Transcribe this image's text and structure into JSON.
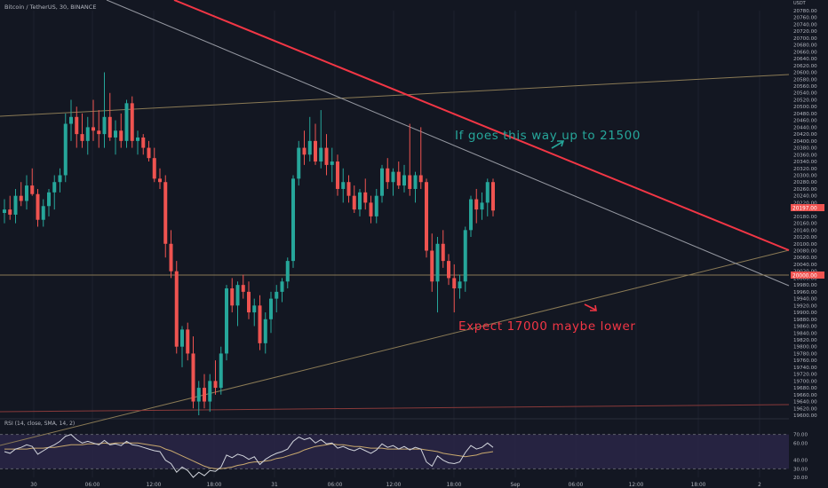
{
  "header": {
    "symbol_line": "Bitcoin / TetherUS, 30, BINANCE",
    "currency": "USDT"
  },
  "annotations": {
    "up_text": "If goes this way up to 21500",
    "down_text": "Expect 17000 maybe lower"
  },
  "colors": {
    "background": "#131722",
    "up_candle": "#26a69a",
    "down_candle": "#ef5350",
    "red_trendline": "#f23645",
    "up_annotation": "#26a69a",
    "down_annotation": "#f23645",
    "rsi_line": "#d1d4dc",
    "rsi_ma": "#c9a96e",
    "rsi_band": "#2a2646"
  },
  "price_badges": {
    "current": "20197.00",
    "hline": "20000.00"
  },
  "chart_data": [
    {
      "type": "candlestick",
      "title": "Bitcoin / TetherUS, 30, BINANCE",
      "ylim": [
        19600,
        20780
      ],
      "y_tick_labels": [
        "20780.00",
        "20760.00",
        "20740.00",
        "20720.00",
        "20700.00",
        "20680.00",
        "20660.00",
        "20640.00",
        "20620.00",
        "20600.00",
        "20580.00",
        "20560.00",
        "20540.00",
        "20520.00",
        "20500.00",
        "20480.00",
        "20460.00",
        "20440.00",
        "20420.00",
        "20400.00",
        "20380.00",
        "20360.00",
        "20340.00",
        "20320.00",
        "20300.00",
        "20280.00",
        "20260.00",
        "20240.00",
        "20220.00",
        "20200.00",
        "20180.00",
        "20160.00",
        "20140.00",
        "20120.00",
        "20100.00",
        "20080.00",
        "20060.00",
        "20040.00",
        "20020.00",
        "20000.00",
        "19980.00",
        "19960.00",
        "19940.00",
        "19920.00",
        "19900.00",
        "19880.00",
        "19860.00",
        "19840.00",
        "19820.00",
        "19800.00",
        "19780.00",
        "19760.00",
        "19740.00",
        "19720.00",
        "19700.00",
        "19680.00",
        "19660.00",
        "19640.00",
        "19620.00",
        "19600.00"
      ],
      "x_tick_labels": [
        "30",
        "06:00",
        "12:00",
        "18:00",
        "31",
        "06:00",
        "12:00",
        "18:00",
        "Sep",
        "06:00",
        "12:00",
        "18:00",
        "2"
      ],
      "candles": [
        {
          "o": 20190,
          "h": 20230,
          "l": 20160,
          "c": 20200
        },
        {
          "o": 20200,
          "h": 20240,
          "l": 20170,
          "c": 20185
        },
        {
          "o": 20185,
          "h": 20260,
          "l": 20160,
          "c": 20240
        },
        {
          "o": 20240,
          "h": 20280,
          "l": 20210,
          "c": 20225
        },
        {
          "o": 20225,
          "h": 20300,
          "l": 20200,
          "c": 20270
        },
        {
          "o": 20270,
          "h": 20320,
          "l": 20240,
          "c": 20245
        },
        {
          "o": 20245,
          "h": 20260,
          "l": 20150,
          "c": 20170
        },
        {
          "o": 20170,
          "h": 20230,
          "l": 20150,
          "c": 20210
        },
        {
          "o": 20210,
          "h": 20260,
          "l": 20180,
          "c": 20250
        },
        {
          "o": 20250,
          "h": 20300,
          "l": 20200,
          "c": 20280
        },
        {
          "o": 20280,
          "h": 20320,
          "l": 20250,
          "c": 20300
        },
        {
          "o": 20300,
          "h": 20480,
          "l": 20280,
          "c": 20450
        },
        {
          "o": 20450,
          "h": 20520,
          "l": 20400,
          "c": 20470
        },
        {
          "o": 20470,
          "h": 20500,
          "l": 20380,
          "c": 20420
        },
        {
          "o": 20420,
          "h": 20480,
          "l": 20380,
          "c": 20400
        },
        {
          "o": 20400,
          "h": 20470,
          "l": 20360,
          "c": 20440
        },
        {
          "o": 20440,
          "h": 20520,
          "l": 20400,
          "c": 20430
        },
        {
          "o": 20430,
          "h": 20490,
          "l": 20380,
          "c": 20420
        },
        {
          "o": 20420,
          "h": 20600,
          "l": 20380,
          "c": 20470
        },
        {
          "o": 20470,
          "h": 20540,
          "l": 20400,
          "c": 20410
        },
        {
          "o": 20410,
          "h": 20460,
          "l": 20360,
          "c": 20430
        },
        {
          "o": 20430,
          "h": 20480,
          "l": 20380,
          "c": 20400
        },
        {
          "o": 20400,
          "h": 20520,
          "l": 20380,
          "c": 20510
        },
        {
          "o": 20510,
          "h": 20530,
          "l": 20380,
          "c": 20400
        },
        {
          "o": 20400,
          "h": 20430,
          "l": 20360,
          "c": 20410
        },
        {
          "o": 20410,
          "h": 20420,
          "l": 20360,
          "c": 20380
        },
        {
          "o": 20380,
          "h": 20400,
          "l": 20340,
          "c": 20350
        },
        {
          "o": 20350,
          "h": 20380,
          "l": 20280,
          "c": 20290
        },
        {
          "o": 20290,
          "h": 20320,
          "l": 20260,
          "c": 20280
        },
        {
          "o": 20280,
          "h": 20300,
          "l": 20060,
          "c": 20100
        },
        {
          "o": 20100,
          "h": 20140,
          "l": 20000,
          "c": 20020
        },
        {
          "o": 20020,
          "h": 20050,
          "l": 19780,
          "c": 19800
        },
        {
          "o": 19800,
          "h": 19860,
          "l": 19740,
          "c": 19850
        },
        {
          "o": 19850,
          "h": 19870,
          "l": 19760,
          "c": 19780
        },
        {
          "o": 19780,
          "h": 19830,
          "l": 19620,
          "c": 19640
        },
        {
          "o": 19640,
          "h": 19700,
          "l": 19600,
          "c": 19680
        },
        {
          "o": 19680,
          "h": 19720,
          "l": 19620,
          "c": 19640
        },
        {
          "o": 19640,
          "h": 19720,
          "l": 19610,
          "c": 19700
        },
        {
          "o": 19700,
          "h": 19760,
          "l": 19660,
          "c": 19680
        },
        {
          "o": 19680,
          "h": 19800,
          "l": 19660,
          "c": 19780
        },
        {
          "o": 19780,
          "h": 19980,
          "l": 19760,
          "c": 19970
        },
        {
          "o": 19970,
          "h": 20000,
          "l": 19900,
          "c": 19920
        },
        {
          "o": 19920,
          "h": 19990,
          "l": 19860,
          "c": 19980
        },
        {
          "o": 19980,
          "h": 20010,
          "l": 19940,
          "c": 19960
        },
        {
          "o": 19960,
          "h": 19990,
          "l": 19880,
          "c": 19900
        },
        {
          "o": 19900,
          "h": 19940,
          "l": 19860,
          "c": 19920
        },
        {
          "o": 19920,
          "h": 19950,
          "l": 19790,
          "c": 19810
        },
        {
          "o": 19810,
          "h": 19900,
          "l": 19780,
          "c": 19880
        },
        {
          "o": 19880,
          "h": 19960,
          "l": 19840,
          "c": 19940
        },
        {
          "o": 19940,
          "h": 19980,
          "l": 19900,
          "c": 19960
        },
        {
          "o": 19960,
          "h": 20000,
          "l": 19930,
          "c": 19990
        },
        {
          "o": 19990,
          "h": 20060,
          "l": 19970,
          "c": 20050
        },
        {
          "o": 20050,
          "h": 20300,
          "l": 20030,
          "c": 20290
        },
        {
          "o": 20290,
          "h": 20400,
          "l": 20270,
          "c": 20380
        },
        {
          "o": 20380,
          "h": 20430,
          "l": 20330,
          "c": 20360
        },
        {
          "o": 20360,
          "h": 20470,
          "l": 20340,
          "c": 20400
        },
        {
          "o": 20400,
          "h": 20450,
          "l": 20330,
          "c": 20340
        },
        {
          "o": 20340,
          "h": 20490,
          "l": 20320,
          "c": 20380
        },
        {
          "o": 20380,
          "h": 20420,
          "l": 20300,
          "c": 20330
        },
        {
          "o": 20330,
          "h": 20380,
          "l": 20280,
          "c": 20340
        },
        {
          "o": 20340,
          "h": 20360,
          "l": 20240,
          "c": 20260
        },
        {
          "o": 20260,
          "h": 20320,
          "l": 20220,
          "c": 20280
        },
        {
          "o": 20280,
          "h": 20300,
          "l": 20220,
          "c": 20240
        },
        {
          "o": 20240,
          "h": 20270,
          "l": 20190,
          "c": 20200
        },
        {
          "o": 20200,
          "h": 20260,
          "l": 20180,
          "c": 20250
        },
        {
          "o": 20250,
          "h": 20290,
          "l": 20200,
          "c": 20220
        },
        {
          "o": 20220,
          "h": 20240,
          "l": 20160,
          "c": 20180
        },
        {
          "o": 20180,
          "h": 20260,
          "l": 20160,
          "c": 20240
        },
        {
          "o": 20240,
          "h": 20330,
          "l": 20220,
          "c": 20320
        },
        {
          "o": 20320,
          "h": 20350,
          "l": 20260,
          "c": 20280
        },
        {
          "o": 20280,
          "h": 20320,
          "l": 20240,
          "c": 20310
        },
        {
          "o": 20310,
          "h": 20340,
          "l": 20260,
          "c": 20270
        },
        {
          "o": 20270,
          "h": 20330,
          "l": 20250,
          "c": 20300
        },
        {
          "o": 20300,
          "h": 20450,
          "l": 20240,
          "c": 20260
        },
        {
          "o": 20260,
          "h": 20310,
          "l": 20220,
          "c": 20300
        },
        {
          "o": 20300,
          "h": 20440,
          "l": 20260,
          "c": 20280
        },
        {
          "o": 20280,
          "h": 20290,
          "l": 20060,
          "c": 20080
        },
        {
          "o": 20080,
          "h": 20130,
          "l": 19960,
          "c": 19990
        },
        {
          "o": 19990,
          "h": 20120,
          "l": 19900,
          "c": 20100
        },
        {
          "o": 20100,
          "h": 20140,
          "l": 20030,
          "c": 20050
        },
        {
          "o": 20050,
          "h": 20070,
          "l": 19980,
          "c": 20000
        },
        {
          "o": 20000,
          "h": 20040,
          "l": 19900,
          "c": 19970
        },
        {
          "o": 19970,
          "h": 20010,
          "l": 19940,
          "c": 19990
        },
        {
          "o": 19990,
          "h": 20150,
          "l": 19960,
          "c": 20140
        },
        {
          "o": 20140,
          "h": 20240,
          "l": 20120,
          "c": 20230
        },
        {
          "o": 20230,
          "h": 20260,
          "l": 20160,
          "c": 20200
        },
        {
          "o": 20200,
          "h": 20250,
          "l": 20170,
          "c": 20220
        },
        {
          "o": 20220,
          "h": 20290,
          "l": 20180,
          "c": 20280
        },
        {
          "o": 20280,
          "h": 20290,
          "l": 20180,
          "c": 20197
        }
      ]
    },
    {
      "type": "line",
      "title": "RSI (14, close, SMA, 14, 2)",
      "ylim": [
        20,
        80
      ],
      "y_tick_labels": [
        "70.00",
        "60.00",
        "40.00",
        "30.00",
        "20.00"
      ],
      "band": [
        30,
        70
      ],
      "series": [
        {
          "name": "RSI",
          "values": [
            50,
            48,
            53,
            55,
            58,
            56,
            47,
            51,
            55,
            58,
            62,
            68,
            70,
            64,
            60,
            62,
            60,
            58,
            63,
            58,
            59,
            57,
            62,
            58,
            57,
            55,
            53,
            51,
            50,
            40,
            36,
            26,
            32,
            28,
            20,
            26,
            22,
            28,
            27,
            32,
            46,
            43,
            47,
            45,
            41,
            44,
            35,
            41,
            45,
            48,
            50,
            53,
            62,
            67,
            64,
            66,
            60,
            64,
            59,
            60,
            54,
            56,
            53,
            51,
            54,
            51,
            48,
            52,
            59,
            55,
            57,
            53,
            56,
            52,
            55,
            53,
            38,
            33,
            45,
            40,
            37,
            36,
            38,
            49,
            57,
            53,
            55,
            60,
            55
          ]
        },
        {
          "name": "RSI-based MA",
          "values": [
            53,
            53,
            53,
            53,
            53,
            54,
            54,
            54,
            55,
            55,
            56,
            57,
            58,
            58,
            58,
            59,
            59,
            59,
            60,
            59,
            60,
            60,
            60,
            60,
            60,
            59,
            58,
            57,
            56,
            53,
            51,
            48,
            45,
            42,
            39,
            36,
            33,
            31,
            30,
            30,
            31,
            32,
            34,
            35,
            37,
            38,
            38,
            39,
            40,
            42,
            43,
            45,
            47,
            49,
            52,
            54,
            56,
            57,
            58,
            59,
            58,
            58,
            57,
            56,
            56,
            55,
            54,
            54,
            54,
            53,
            53,
            53,
            53,
            53,
            53,
            53,
            52,
            51,
            50,
            48,
            47,
            46,
            45,
            44,
            45,
            46,
            48,
            49,
            50
          ]
        }
      ]
    }
  ]
}
